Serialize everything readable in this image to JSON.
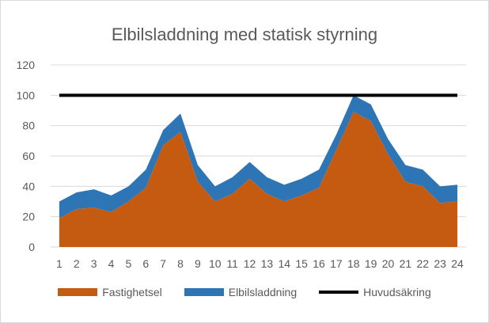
{
  "colors": {
    "fastighetsel": "#C55A11",
    "elbilsladdning": "#2E75B6",
    "huvudsakring": "#000000",
    "gridline": "#d9d9d9",
    "text": "#595959"
  },
  "chart_data": {
    "type": "area",
    "title": "Elbilsladdning med statisk styrning",
    "xlabel": "",
    "ylabel": "",
    "stacked": true,
    "ylim": [
      0,
      120
    ],
    "yticks": [
      0,
      20,
      40,
      60,
      80,
      100,
      120
    ],
    "grid": true,
    "legend_position": "bottom",
    "categories": [
      "1",
      "2",
      "3",
      "4",
      "5",
      "6",
      "7",
      "8",
      "9",
      "10",
      "11",
      "12",
      "13",
      "14",
      "15",
      "16",
      "17",
      "18",
      "19",
      "20",
      "21",
      "22",
      "23",
      "24"
    ],
    "series": [
      {
        "name": "Fastighetsel",
        "kind": "area",
        "values": [
          19,
          25,
          26,
          23,
          30,
          39,
          67,
          76,
          43,
          30,
          35,
          45,
          35,
          30,
          34,
          39,
          64,
          89,
          83,
          61,
          43,
          40,
          29,
          30
        ]
      },
      {
        "name": "Elbilsladdning",
        "kind": "area",
        "values": [
          11,
          11,
          12,
          11,
          10,
          12,
          10,
          12,
          11,
          10,
          11,
          11,
          11,
          11,
          11,
          12,
          10,
          11,
          11,
          10,
          11,
          11,
          11,
          11
        ]
      },
      {
        "name": "Huvudsäkring",
        "kind": "line",
        "values": [
          100,
          100,
          100,
          100,
          100,
          100,
          100,
          100,
          100,
          100,
          100,
          100,
          100,
          100,
          100,
          100,
          100,
          100,
          100,
          100,
          100,
          100,
          100,
          100
        ]
      }
    ]
  }
}
